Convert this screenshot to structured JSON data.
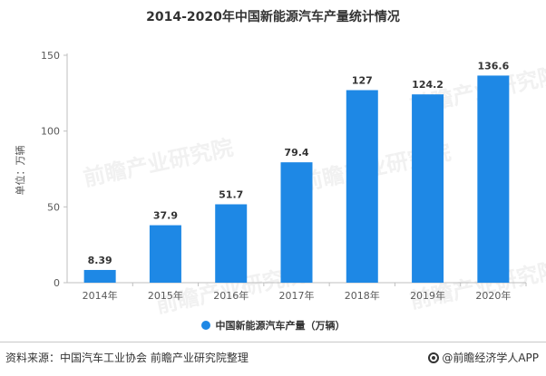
{
  "chart_data": {
    "type": "bar",
    "title": "2014-2020年中国新能源汽车产量统计情况",
    "ylabel": "单位：万辆",
    "xlabel": "",
    "categories": [
      "2014年",
      "2015年",
      "2016年",
      "2017年",
      "2018年",
      "2019年",
      "2020年"
    ],
    "series": [
      {
        "name": "中国新能源汽车产量（万辆）",
        "values": [
          8.39,
          37.9,
          51.7,
          79.4,
          127,
          124.2,
          136.6
        ],
        "labels": [
          "8.39",
          "37.9",
          "51.7",
          "79.4",
          "127",
          "124.2",
          "136.6"
        ],
        "color": "#1e88e5"
      }
    ],
    "ylim": [
      0,
      150
    ],
    "yticks": [
      0,
      50,
      100,
      150
    ],
    "grid": false,
    "legend_position": "bottom-center"
  },
  "watermark_text": "前瞻产业研究院",
  "footer": {
    "source": "资料来源：中国汽车工业协会 前瞻产业研究院整理",
    "brand": "@前瞻经济学人APP"
  }
}
